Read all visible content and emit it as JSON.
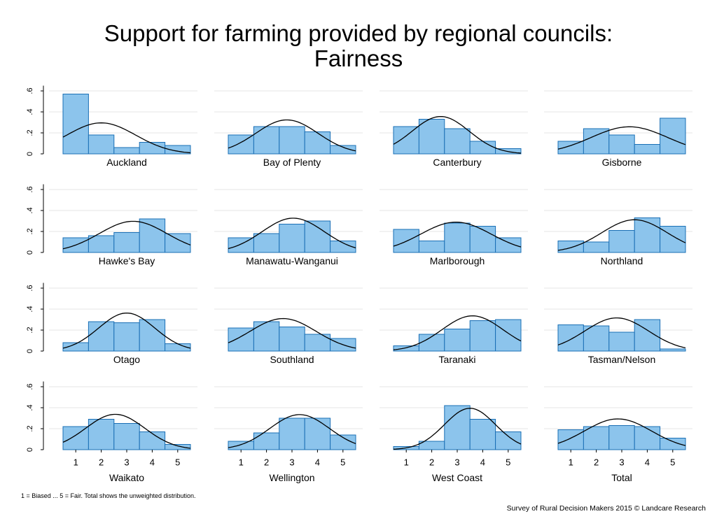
{
  "title_line1": "Support for farming provided by regional councils:",
  "title_line2": "Fairness",
  "footnote": "1 = Biased ... 5 = Fair. Total shows the unweighted distribution.",
  "credit": "Survey of Rural Decision Makers 2015 © Landcare Research",
  "colors": {
    "bar_fill": "#8cc4ec",
    "bar_stroke": "#1a6fb5",
    "curve": "#000000",
    "grid": "#e4e4e4",
    "axis": "#000000"
  },
  "chart_data": {
    "type": "bar",
    "subtype": "histogram-by-region with fitted normal curve",
    "categories": [
      "1",
      "2",
      "3",
      "4",
      "5"
    ],
    "y_tick_labels": [
      "0",
      ".2",
      ".4",
      ".6"
    ],
    "ylim": [
      0,
      0.65
    ],
    "x_tick_labels": [
      "1",
      "2",
      "3",
      "4",
      "5"
    ],
    "grid": true,
    "series": [
      {
        "name": "Auckland",
        "values": [
          0.57,
          0.18,
          0.06,
          0.11,
          0.08
        ],
        "fit_mean": 2.0,
        "fit_sd": 1.35
      },
      {
        "name": "Bay of Plenty",
        "values": [
          0.18,
          0.26,
          0.26,
          0.21,
          0.08
        ],
        "fit_mean": 2.8,
        "fit_sd": 1.22
      },
      {
        "name": "Canterbury",
        "values": [
          0.26,
          0.33,
          0.24,
          0.12,
          0.05
        ],
        "fit_mean": 2.35,
        "fit_sd": 1.12
      },
      {
        "name": "Gisborne",
        "values": [
          0.12,
          0.24,
          0.18,
          0.09,
          0.34
        ],
        "fit_mean": 3.3,
        "fit_sd": 1.5
      },
      {
        "name": "Hawke's Bay",
        "values": [
          0.14,
          0.16,
          0.19,
          0.32,
          0.18
        ],
        "fit_mean": 3.25,
        "fit_sd": 1.33
      },
      {
        "name": "Manawatu-Wanganui",
        "values": [
          0.14,
          0.18,
          0.27,
          0.3,
          0.11
        ],
        "fit_mean": 3.05,
        "fit_sd": 1.22
      },
      {
        "name": "Marlborough",
        "values": [
          0.22,
          0.11,
          0.28,
          0.25,
          0.14
        ],
        "fit_mean": 2.95,
        "fit_sd": 1.38
      },
      {
        "name": "Northland",
        "values": [
          0.11,
          0.1,
          0.21,
          0.33,
          0.25
        ],
        "fit_mean": 3.5,
        "fit_sd": 1.28
      },
      {
        "name": "Otago",
        "values": [
          0.08,
          0.28,
          0.27,
          0.3,
          0.07
        ],
        "fit_mean": 3.0,
        "fit_sd": 1.1
      },
      {
        "name": "Southland",
        "values": [
          0.22,
          0.28,
          0.23,
          0.16,
          0.12
        ],
        "fit_mean": 2.65,
        "fit_sd": 1.3
      },
      {
        "name": "Taranaki",
        "values": [
          0.05,
          0.16,
          0.21,
          0.29,
          0.3
        ],
        "fit_mean": 3.6,
        "fit_sd": 1.2
      },
      {
        "name": "Tasman/Nelson",
        "values": [
          0.25,
          0.24,
          0.18,
          0.3,
          0.02
        ],
        "fit_mean": 2.8,
        "fit_sd": 1.25
      },
      {
        "name": "Waikato",
        "values": [
          0.22,
          0.29,
          0.25,
          0.17,
          0.05
        ],
        "fit_mean": 2.55,
        "fit_sd": 1.16
      },
      {
        "name": "Wellington",
        "values": [
          0.08,
          0.16,
          0.3,
          0.3,
          0.14
        ],
        "fit_mean": 3.3,
        "fit_sd": 1.17
      },
      {
        "name": "West Coast",
        "values": [
          0.03,
          0.08,
          0.42,
          0.29,
          0.17
        ],
        "fit_mean": 3.5,
        "fit_sd": 1.0
      },
      {
        "name": "Total",
        "values": [
          0.19,
          0.22,
          0.23,
          0.22,
          0.11
        ],
        "fit_mean": 2.85,
        "fit_sd": 1.32
      }
    ]
  }
}
